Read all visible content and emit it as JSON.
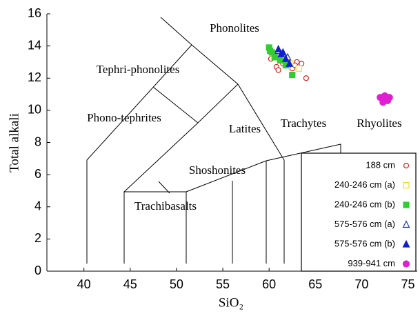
{
  "chart_data": {
    "type": "scatter",
    "x_label": "SiO₂",
    "y_label": "Total alkali",
    "xlim": [
      36,
      76
    ],
    "ylim": [
      0,
      16
    ],
    "xticks": [
      40,
      45,
      50,
      55,
      60,
      65,
      70,
      75
    ],
    "yticks": [
      0,
      2,
      4,
      6,
      8,
      10,
      12,
      14,
      16
    ],
    "annotations": [
      "Phonolites",
      "Tephri-phonolites",
      "Phono-tephrites",
      "Latites",
      "Trachytes",
      "Rhyolites",
      "Shoshonites",
      "Trachibasalts"
    ],
    "legend": "lower right",
    "series": [
      {
        "name": "188 cm",
        "color": "#d62020",
        "marker": "circle-open",
        "x": [
          60.2,
          60.8,
          61.5,
          62.0,
          62.5,
          63.0,
          63.5,
          64.0,
          61.0,
          62.8
        ],
        "values": [
          13.2,
          12.7,
          12.9,
          13.1,
          12.6,
          13.0,
          12.9,
          12.0,
          12.5,
          12.8
        ]
      },
      {
        "name": "240-246 cm (a)",
        "color": "#e8e020",
        "marker": "square-open",
        "x": [
          61.5,
          62.3,
          63.2,
          60.5
        ],
        "values": [
          13.2,
          12.9,
          12.6,
          13.5
        ]
      },
      {
        "name": "240-246 cm (b)",
        "color": "#33cc33",
        "marker": "square",
        "x": [
          60.0,
          60.3,
          60.6,
          61.2,
          62.5,
          60.1,
          61.8
        ],
        "values": [
          13.9,
          13.6,
          13.3,
          13.1,
          12.2,
          13.7,
          12.8
        ]
      },
      {
        "name": "575-576 cm (a)",
        "color": "#2030c0",
        "marker": "triangle-open",
        "x": [
          61.0,
          61.5,
          62.0
        ],
        "values": [
          13.7,
          13.5,
          13.3
        ]
      },
      {
        "name": "575-576 cm (b)",
        "color": "#1020d0",
        "marker": "triangle",
        "x": [
          61.0,
          61.3,
          61.8,
          62.2,
          61.5
        ],
        "values": [
          13.8,
          13.5,
          13.2,
          12.9,
          13.6
        ]
      },
      {
        "name": "939-941 cm",
        "color": "#e020d0",
        "marker": "circle",
        "x": [
          72.0,
          72.5,
          72.8,
          72.3,
          73.0
        ],
        "values": [
          10.8,
          10.9,
          10.6,
          10.5,
          10.8
        ]
      }
    ]
  }
}
